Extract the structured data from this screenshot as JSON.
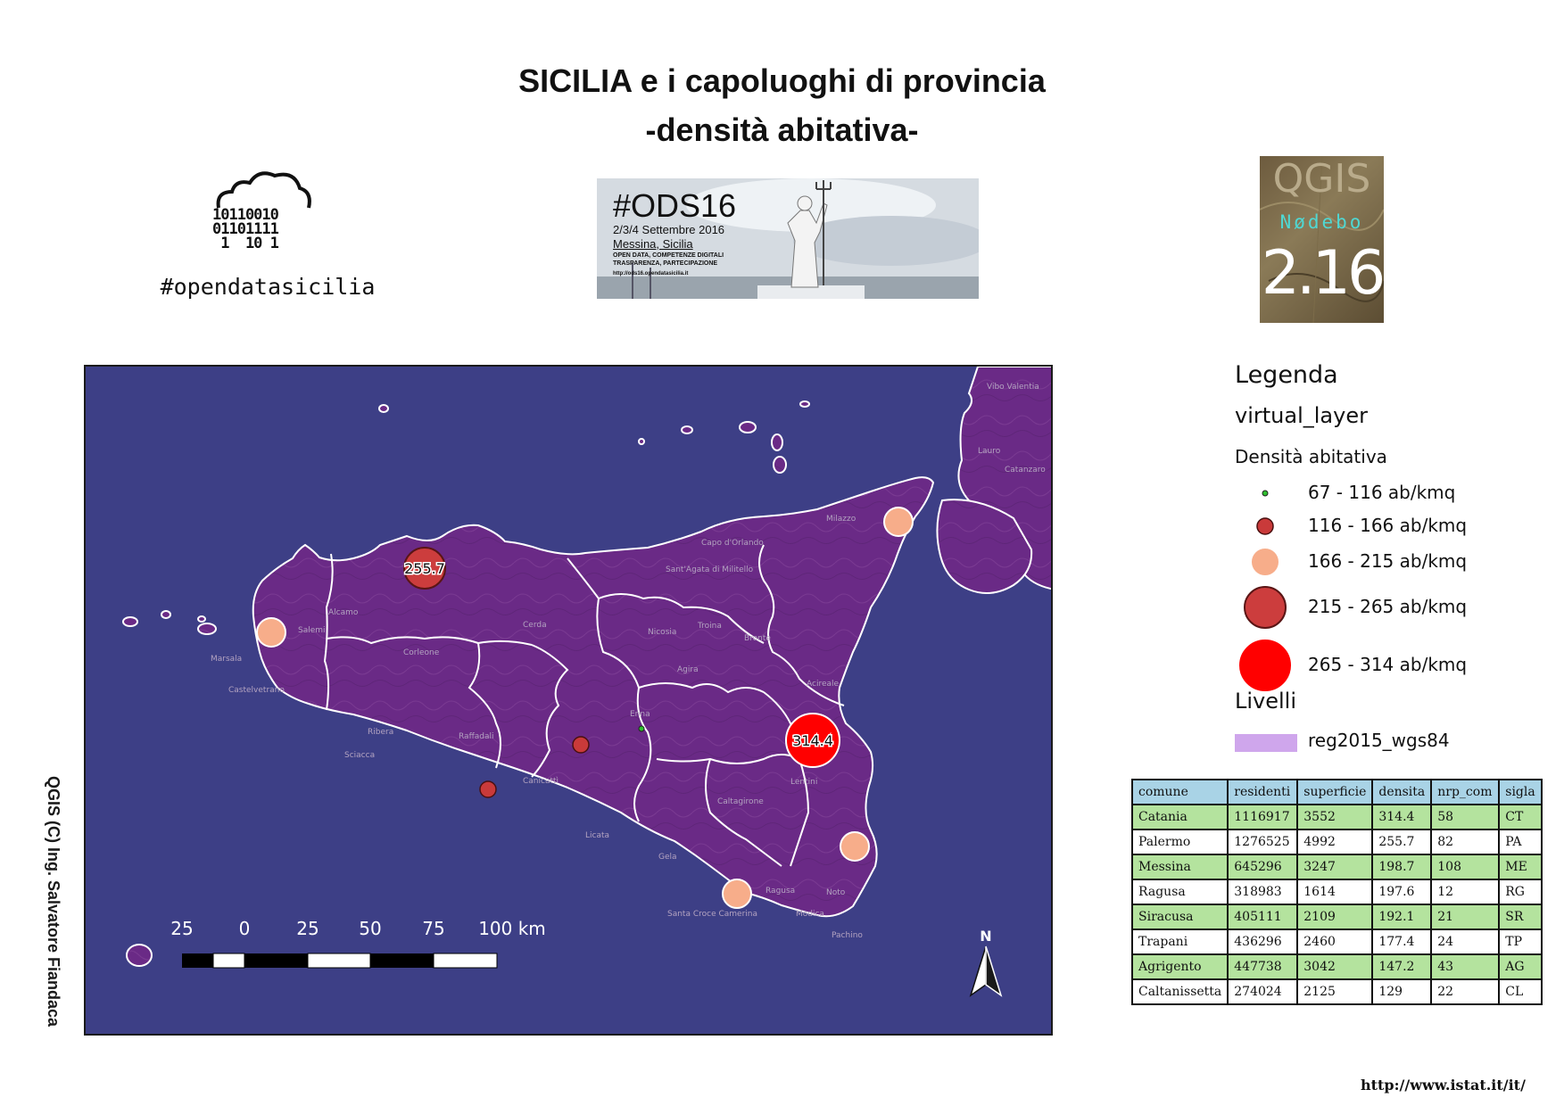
{
  "title": {
    "line1": "SICILIA e i capoluoghi di provincia",
    "line2": "-densità abitativa-"
  },
  "logo_ods": {
    "icon": "cloud-binary-icon",
    "bits": "10110010\n01101111\n 1  10 1",
    "hashtag": "#opendatasicilia"
  },
  "banner": {
    "tag": "#ODS16",
    "dates": "2/3/4 Settembre 2016",
    "city": "Messina, Sicilia",
    "subtitle": "OPEN DATA, COMPETENZE DIGITALI TRASPARENZA, PARTECIPAZIONE",
    "url": "http://ods16.opendatasicilia.it"
  },
  "qgis_logo": {
    "name": "QGIS",
    "codename": "Nødebo",
    "version": "2.16"
  },
  "map": {
    "credit": "QGIS (C) Ing. Salvatore Fiandaca",
    "colors": {
      "sea": "#3d3f86",
      "land": "#6a2a86",
      "border": "#ffffff",
      "class1": "#2fbf2f",
      "class2": "#c93a3a",
      "class3": "#f7ad8a",
      "class4": "#cc3d3d",
      "class5": "#ff0000"
    },
    "place_labels": [
      "Vibo Valentia",
      "Lauro",
      "Catanzaro",
      "Milazzo",
      "Capo d'Orlando",
      "Sant'Agata di Militello",
      "Cerda",
      "Alcamo",
      "Salemi",
      "Marsala",
      "Castelvetrano",
      "Corleone",
      "Enna",
      "Nicosia",
      "Troina",
      "Bronte",
      "Agira",
      "Acireale",
      "Caltagirone",
      "Ragusa",
      "Modica",
      "Noto",
      "Lentini",
      "Licata",
      "Ribera",
      "Raffadali",
      "Canicattì",
      "Sciacca",
      "Gela",
      "Santa Croce Camerina",
      "Pachino"
    ],
    "value_labels": [
      {
        "city": "Palermo",
        "value": "255.7"
      },
      {
        "city": "Catania",
        "value": "314.4"
      }
    ],
    "north_arrow": {
      "icon": "north-arrow-icon",
      "label": "N"
    },
    "scalebar": {
      "labels": [
        "25",
        "0",
        "25",
        "50",
        "75",
        "100 km"
      ]
    }
  },
  "legend": {
    "heading": "Legenda",
    "layer": "virtual_layer",
    "attribute": "Densità abitativa",
    "classes": [
      {
        "label": "67 - 116 ab/kmq",
        "color": "#2fbf2f"
      },
      {
        "label": "116 - 166 ab/kmq",
        "color": "#c93a3a"
      },
      {
        "label": "166 - 215 ab/kmq",
        "color": "#f7ad8a"
      },
      {
        "label": "215 - 265 ab/kmq",
        "color": "#cc3d3d"
      },
      {
        "label": "265 - 314 ab/kmq",
        "color": "#ff0000"
      }
    ],
    "levels_heading": "Livelli",
    "level_item": {
      "label": "reg2015_wgs84",
      "color": "#cfa6ec"
    }
  },
  "table": {
    "headers": [
      "comune",
      "residenti",
      "superficie",
      "densita",
      "nrp_com",
      "sigla"
    ],
    "rows": [
      [
        "Catania",
        "1116917",
        "3552",
        "314.4",
        "58",
        "CT"
      ],
      [
        "Palermo",
        "1276525",
        "4992",
        "255.7",
        "82",
        "PA"
      ],
      [
        "Messina",
        "645296",
        "3247",
        "198.7",
        "108",
        "ME"
      ],
      [
        "Ragusa",
        "318983",
        "1614",
        "197.6",
        "12",
        "RG"
      ],
      [
        "Siracusa",
        "405111",
        "2109",
        "192.1",
        "21",
        "SR"
      ],
      [
        "Trapani",
        "436296",
        "2460",
        "177.4",
        "24",
        "TP"
      ],
      [
        "Agrigento",
        "447738",
        "3042",
        "147.2",
        "43",
        "AG"
      ],
      [
        "Caltanissetta",
        "274024",
        "2125",
        "129",
        "22",
        "CL"
      ]
    ]
  },
  "source_url": "http://www.istat.it/it/"
}
